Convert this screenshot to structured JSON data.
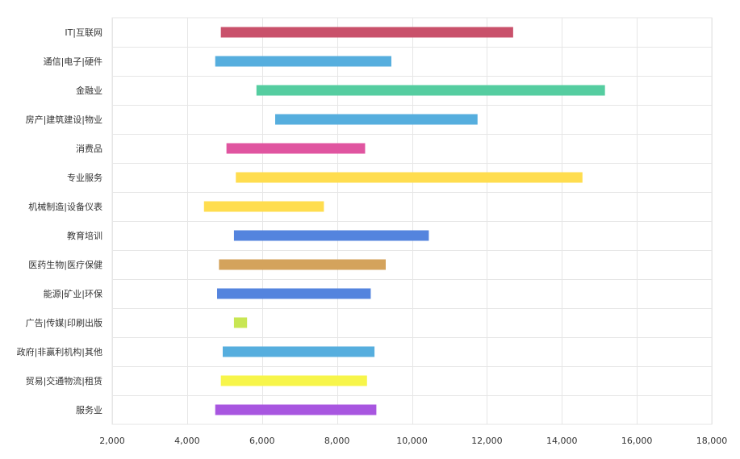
{
  "chart_data": {
    "type": "bar",
    "orientation": "horizontal",
    "style": "range",
    "categories": [
      "IT|互联网",
      "通信|电子|硬件",
      "金融业",
      "房产|建筑建设|物业",
      "消费品",
      "专业服务",
      "机械制造|设备仪表",
      "教育培训",
      "医药生物|医疗保健",
      "能源|矿业|环保",
      "广告|传媒|印刷出版",
      "政府|非赢利机构|其他",
      "贸易|交通物流|租赁",
      "服务业"
    ],
    "series": [
      {
        "ranges": [
          [
            4900,
            12700
          ],
          [
            4750,
            9450
          ],
          [
            5850,
            15150
          ],
          [
            6350,
            11750
          ],
          [
            5050,
            8750
          ],
          [
            5300,
            14550
          ],
          [
            4450,
            7650
          ],
          [
            5250,
            10450
          ],
          [
            4850,
            9300
          ],
          [
            4800,
            8900
          ],
          [
            5250,
            5600
          ],
          [
            4950,
            9000
          ],
          [
            4900,
            8800
          ],
          [
            4750,
            9050
          ]
        ],
        "colors": [
          "#c9516b",
          "#56aede",
          "#55cda0",
          "#56aede",
          "#e055a0",
          "#ffdd4f",
          "#ffdd4f",
          "#5484de",
          "#d4a35c",
          "#5484de",
          "#c8e653",
          "#56aede",
          "#f7f54a",
          "#a856e0"
        ]
      }
    ],
    "xlim": [
      2000,
      18000
    ],
    "xticks": [
      2000,
      4000,
      6000,
      8000,
      10000,
      12000,
      14000,
      16000,
      18000
    ],
    "xtick_labels": [
      "2,000",
      "4,000",
      "6,000",
      "8,000",
      "10,000",
      "12,000",
      "14,000",
      "16,000",
      "18,000"
    ],
    "grid": true,
    "title": "",
    "xlabel": "",
    "ylabel": ""
  }
}
